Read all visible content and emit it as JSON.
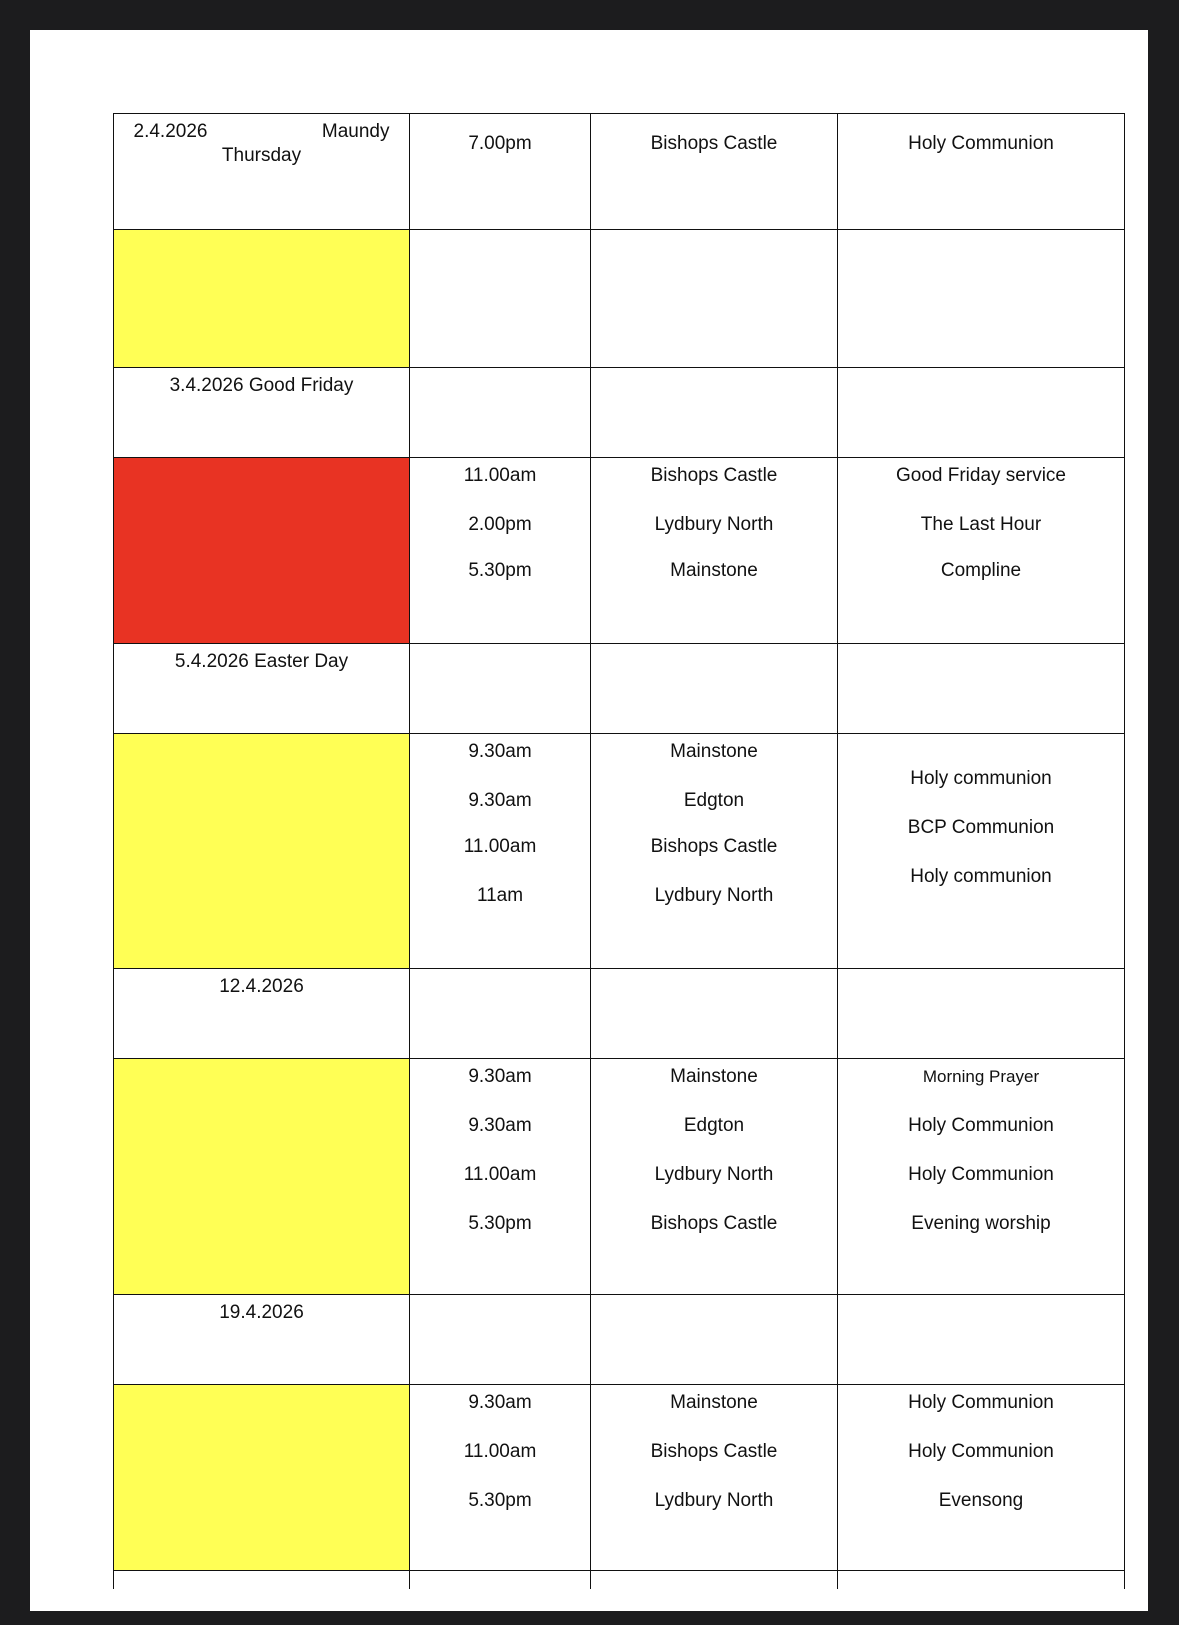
{
  "colors": {
    "background": "#1c1c1e",
    "page": "#ffffff",
    "yellow": "#ffff55",
    "red": "#e83323",
    "grid": "#111111"
  },
  "rows": [
    {
      "date": "2.4.2026 Maundy Thursday",
      "fill": null,
      "times": [
        "7.00pm"
      ],
      "places": [
        "Bishops Castle"
      ],
      "services": [
        "Holy Communion"
      ]
    },
    {
      "date": "",
      "fill": "yellow",
      "times": [],
      "places": [],
      "services": []
    },
    {
      "date": "3.4.2026 Good Friday",
      "fill": null,
      "times": [],
      "places": [],
      "services": []
    },
    {
      "date": "",
      "fill": "red",
      "times": [
        "11.00am",
        "2.00pm",
        "5.30pm"
      ],
      "places": [
        "Bishops Castle",
        "Lydbury North",
        "Mainstone"
      ],
      "services": [
        "Good Friday service",
        "The Last Hour",
        "Compline"
      ]
    },
    {
      "date": "5.4.2026 Easter Day",
      "fill": null,
      "times": [],
      "places": [],
      "services": []
    },
    {
      "date": "",
      "fill": "yellow",
      "times": [
        "9.30am",
        "9.30am",
        "11.00am",
        "11am"
      ],
      "places": [
        "Mainstone",
        "Edgton",
        "Bishops Castle",
        "Lydbury North"
      ],
      "services": [
        "Holy communion",
        "BCP  Communion",
        "Holy communion"
      ]
    },
    {
      "date": "12.4.2026",
      "fill": null,
      "times": [],
      "places": [],
      "services": []
    },
    {
      "date": "",
      "fill": "yellow",
      "times": [
        "9.30am",
        "9.30am",
        "11.00am",
        "5.30pm"
      ],
      "places": [
        "Mainstone",
        "Edgton",
        "Lydbury North",
        "Bishops Castle"
      ],
      "services": [
        "Morning Prayer",
        "Holy Communion",
        "Holy Communion",
        "Evening worship"
      ]
    },
    {
      "date": "19.4.2026",
      "fill": null,
      "times": [],
      "places": [],
      "services": []
    },
    {
      "date": "",
      "fill": "yellow",
      "times": [
        "9.30am",
        "11.00am",
        "5.30pm"
      ],
      "places": [
        "Mainstone",
        "Bishops Castle",
        "Lydbury North"
      ],
      "services": [
        "Holy Communion",
        "Holy Communion",
        "Evensong"
      ]
    },
    {
      "date": "",
      "fill": null,
      "times": [],
      "places": [],
      "services": []
    }
  ]
}
